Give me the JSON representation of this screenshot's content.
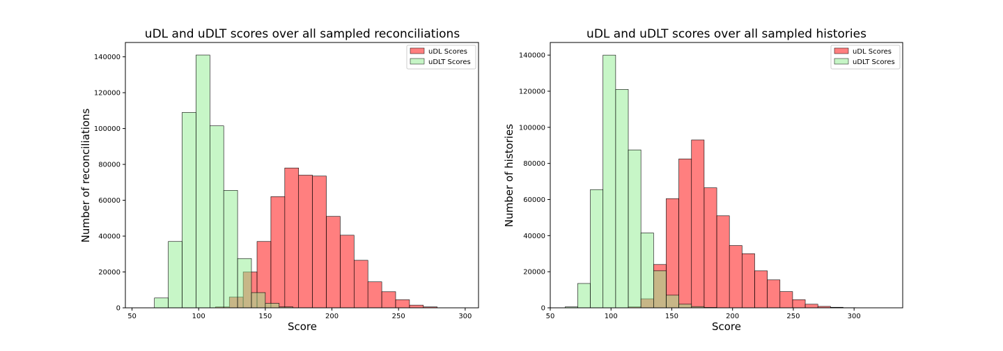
{
  "chart_data": [
    {
      "type": "bar",
      "title": "uDL and uDLT scores over all sampled reconciliations",
      "xlabel": "Score",
      "ylabel": "Number of reconciliations",
      "xlim": [
        45,
        310
      ],
      "ylim": [
        0,
        148000
      ],
      "xticks": [
        50,
        100,
        150,
        200,
        250,
        300
      ],
      "yticks": [
        0,
        20000,
        40000,
        60000,
        80000,
        100000,
        120000,
        140000
      ],
      "bin_width": 10.4,
      "legend": "top-right",
      "grid": false,
      "series": [
        {
          "name": "uDL Scores",
          "color": "#ff0000",
          "bin_starts": [
            112.6,
            123.0,
            133.4,
            143.8,
            154.2,
            164.6,
            175.0,
            185.4,
            195.8,
            206.2,
            216.6,
            227.0,
            237.4,
            247.8,
            258.2,
            268.6
          ],
          "values": [
            500,
            6000,
            20000,
            37000,
            62000,
            78000,
            74000,
            73500,
            51000,
            40500,
            26500,
            14500,
            9000,
            4500,
            1500,
            500
          ]
        },
        {
          "name": "uDLT Scores",
          "color": "#90ee90",
          "bin_starts": [
            66.8,
            77.2,
            87.6,
            98.0,
            108.4,
            118.8,
            129.2,
            139.6,
            150.0,
            160.4
          ],
          "values": [
            5500,
            37000,
            109000,
            141000,
            101500,
            65500,
            27500,
            8500,
            2500,
            500
          ]
        }
      ]
    },
    {
      "type": "bar",
      "title": "uDL and uDLT scores over all sampled histories",
      "xlabel": "Score",
      "ylabel": "Number of histories",
      "xlim": [
        50,
        340
      ],
      "ylim": [
        0,
        147000
      ],
      "xticks": [
        50,
        100,
        150,
        200,
        250,
        300
      ],
      "yticks": [
        0,
        20000,
        40000,
        60000,
        80000,
        100000,
        120000,
        140000
      ],
      "bin_width": 10.4,
      "legend": "top-right",
      "grid": false,
      "series": [
        {
          "name": "uDL Scores",
          "color": "#ff0000",
          "bin_starts": [
            62.2,
            72.6,
            83.0,
            93.4,
            103.8,
            114.2,
            124.6,
            135.0,
            145.4,
            155.8,
            166.2,
            176.6,
            187.0,
            197.4,
            207.8,
            218.2,
            228.6,
            239.0,
            249.4,
            259.8,
            270.2,
            280.6,
            291.0
          ],
          "values": [
            0,
            0,
            0,
            0,
            0,
            500,
            5000,
            24000,
            60500,
            82500,
            93000,
            66500,
            51000,
            34500,
            30000,
            20500,
            15500,
            9000,
            4500,
            2000,
            800,
            300,
            100
          ]
        },
        {
          "name": "uDLT Scores",
          "color": "#90ee90",
          "bin_starts": [
            62.2,
            72.6,
            83.0,
            93.4,
            103.8,
            114.2,
            124.6,
            135.0,
            145.4,
            155.8,
            166.2,
            176.6
          ],
          "values": [
            500,
            13500,
            65500,
            140000,
            121000,
            87500,
            41500,
            20500,
            7000,
            2000,
            700,
            200
          ]
        }
      ]
    }
  ]
}
